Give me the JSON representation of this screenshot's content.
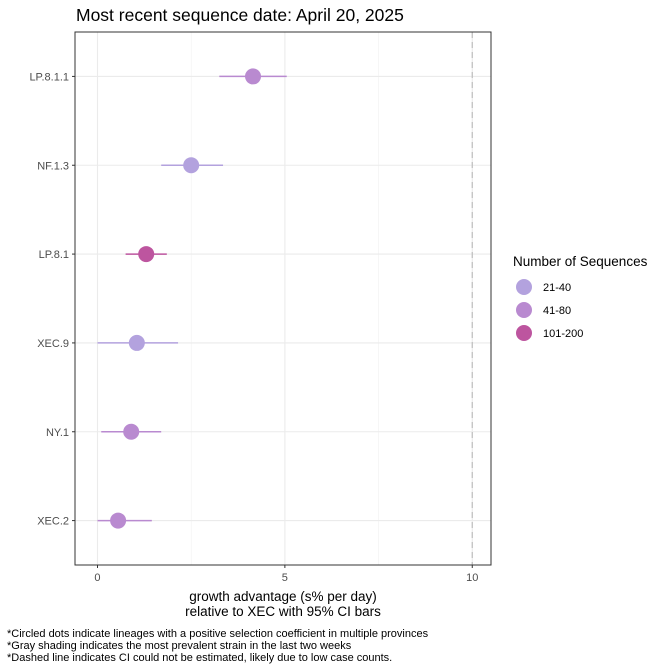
{
  "chart_data": {
    "type": "scatter",
    "title": "Most recent sequence date: April 20, 2025",
    "xlabel_line1": "growth advantage (s% per day)",
    "xlabel_line2": "relative to  XEC  with 95% CI bars",
    "xlim": [
      -0.6,
      10.5
    ],
    "x_ticks": [
      0,
      5,
      10
    ],
    "x_tick_labels": [
      "0",
      "5",
      "10"
    ],
    "x_minor_gridlines": [
      2.5,
      7.5
    ],
    "dashed_reference_x": 10,
    "grid": true,
    "categories": [
      "LP.8.1.1",
      "NF.1.3",
      "LP.8.1",
      "XEC.9",
      "NY.1",
      "XEC.2"
    ],
    "points": [
      {
        "lineage": "LP.8.1.1",
        "x": 4.15,
        "ci_low": 3.25,
        "ci_high": 5.05,
        "group": "41-80"
      },
      {
        "lineage": "NF.1.3",
        "x": 2.5,
        "ci_low": 1.7,
        "ci_high": 3.35,
        "group": "21-40"
      },
      {
        "lineage": "LP.8.1",
        "x": 1.3,
        "ci_low": 0.75,
        "ci_high": 1.85,
        "group": "101-200"
      },
      {
        "lineage": "XEC.9",
        "x": 1.05,
        "ci_low": 0.0,
        "ci_high": 2.15,
        "group": "21-40"
      },
      {
        "lineage": "NY.1",
        "x": 0.9,
        "ci_low": 0.1,
        "ci_high": 1.7,
        "group": "41-80"
      },
      {
        "lineage": "XEC.2",
        "x": 0.55,
        "ci_low": 0.0,
        "ci_high": 1.45,
        "group": "41-80"
      }
    ],
    "legend": {
      "title": "Number of Sequences",
      "placement": "right",
      "entries": [
        {
          "label": "21-40",
          "color": "#b3a2de"
        },
        {
          "label": "41-80",
          "color": "#b98ad0"
        },
        {
          "label": "101-200",
          "color": "#bd559f"
        }
      ]
    }
  },
  "footnotes": [
    "*Circled dots indicate lineages with a positive selection coefficient in multiple provinces",
    "*Gray shading indicates the most prevalent strain in the last two weeks",
    "*Dashed line indicates CI could not be estimated, likely due to low case counts."
  ]
}
